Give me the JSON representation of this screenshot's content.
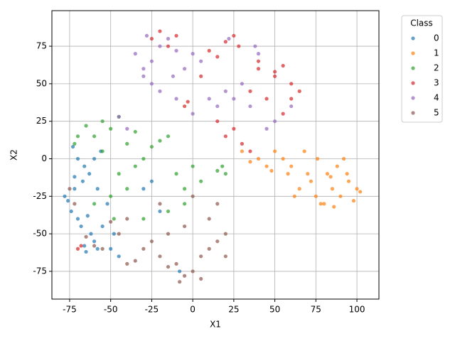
{
  "chart_data": {
    "type": "scatter",
    "x_label": "X1",
    "y_label": "X2",
    "legend_title": "Class",
    "legend": "upper right outside",
    "grid": true,
    "opacity": 0.7,
    "xlim": [
      -85.8,
      113.4
    ],
    "ylim": [
      -93.5,
      98.7
    ],
    "xticks": [
      -75,
      -50,
      -25,
      0,
      25,
      50,
      75,
      100
    ],
    "yticks": [
      -75,
      -50,
      -25,
      0,
      25,
      50,
      75
    ],
    "series": [
      {
        "name": "0",
        "color": "#1f77b4",
        "x": [
          -76,
          -74,
          -72,
          -78,
          -70,
          -68,
          -66,
          -63,
          -60,
          -58,
          -62,
          -65,
          -55,
          -52,
          -70,
          -73,
          -67,
          -64,
          -58,
          -50,
          -48,
          -72,
          -60,
          -56,
          -30,
          -25,
          -20,
          -8,
          -45,
          -66
        ],
        "values": [
          -28,
          -35,
          -20,
          -25,
          -40,
          -45,
          -5,
          -10,
          -55,
          -60,
          -50,
          -62,
          -45,
          -30,
          0,
          8,
          -15,
          -38,
          -20,
          -60,
          -50,
          -12,
          0,
          5,
          -20,
          -15,
          -35,
          -75,
          -65,
          -58
        ]
      },
      {
        "name": "1",
        "color": "#ff7f0e",
        "x": [
          85,
          90,
          95,
          100,
          80,
          75,
          70,
          88,
          92,
          98,
          82,
          78,
          65,
          60,
          55,
          50,
          45,
          40,
          35,
          30,
          68,
          72,
          86,
          94,
          102,
          62,
          58,
          48,
          76,
          84
        ],
        "values": [
          -20,
          -25,
          -15,
          -20,
          -30,
          -25,
          -10,
          -5,
          0,
          -28,
          -10,
          -30,
          -20,
          -5,
          0,
          5,
          -5,
          0,
          -2,
          5,
          5,
          -15,
          -32,
          -10,
          -22,
          -25,
          -10,
          -8,
          0,
          -12
        ]
      },
      {
        "name": "2",
        "color": "#2ca02c",
        "x": [
          -50,
          -55,
          -45,
          -60,
          -70,
          -65,
          -72,
          -40,
          -35,
          -30,
          -45,
          -50,
          -55,
          -40,
          -25,
          -20,
          -15,
          -10,
          -5,
          0,
          5,
          -5,
          15,
          20,
          18,
          -30,
          -60,
          -35,
          -15,
          -48
        ],
        "values": [
          20,
          25,
          28,
          15,
          15,
          22,
          10,
          10,
          -5,
          0,
          -10,
          -25,
          5,
          -20,
          8,
          12,
          15,
          -10,
          -20,
          -5,
          -15,
          -30,
          -8,
          -10,
          -5,
          -40,
          -30,
          18,
          -35,
          -40
        ]
      },
      {
        "name": "3",
        "color": "#d62728",
        "x": [
          -25,
          -20,
          -15,
          -10,
          20,
          25,
          28,
          15,
          10,
          40,
          50,
          55,
          60,
          65,
          45,
          55,
          35,
          -5,
          -3,
          15,
          20,
          25,
          30,
          35,
          50,
          60,
          -70,
          -68,
          5,
          40
        ],
        "values": [
          80,
          85,
          75,
          82,
          78,
          82,
          75,
          68,
          72,
          60,
          58,
          62,
          50,
          45,
          40,
          30,
          45,
          35,
          38,
          25,
          15,
          20,
          10,
          5,
          55,
          40,
          -60,
          -58,
          55,
          65
        ]
      },
      {
        "name": "4",
        "color": "#9467bd",
        "x": [
          -30,
          -35,
          -25,
          -20,
          -15,
          -10,
          -5,
          0,
          5,
          -20,
          -25,
          -10,
          10,
          15,
          20,
          25,
          30,
          35,
          40,
          45,
          50,
          -40,
          -45,
          -30,
          38,
          0,
          -12,
          -28,
          60,
          22
        ],
        "values": [
          60,
          70,
          65,
          75,
          80,
          72,
          60,
          70,
          65,
          45,
          50,
          40,
          40,
          35,
          45,
          40,
          50,
          35,
          70,
          20,
          25,
          20,
          28,
          55,
          75,
          30,
          55,
          82,
          35,
          80
        ]
      },
      {
        "name": "5",
        "color": "#8c564b",
        "x": [
          -10,
          -5,
          0,
          5,
          10,
          15,
          20,
          -15,
          -20,
          -25,
          -30,
          -35,
          -40,
          -45,
          -50,
          -55,
          -60,
          -65,
          -75,
          -72,
          10,
          15,
          0,
          -5,
          -20,
          -15,
          20,
          5,
          -8,
          -40
        ],
        "values": [
          -70,
          -78,
          -75,
          -65,
          -60,
          -55,
          -65,
          -72,
          -65,
          -55,
          -60,
          -68,
          -40,
          -50,
          -42,
          -60,
          -58,
          -52,
          -20,
          -30,
          -40,
          -30,
          -25,
          -45,
          -30,
          -50,
          -50,
          -80,
          -82,
          -70
        ]
      }
    ]
  }
}
